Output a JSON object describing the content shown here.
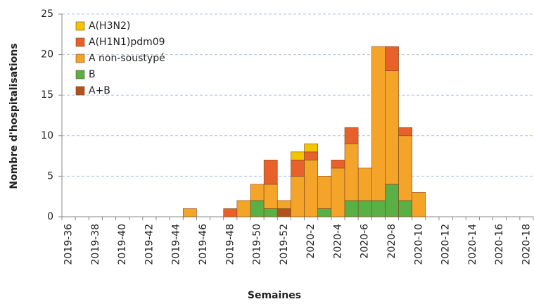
{
  "chart_data": {
    "type": "stacked_bar",
    "xlabel": "Semaines",
    "ylabel": "Nombre d'hospitalisations",
    "categories": [
      "2019-36",
      null,
      "2019-38",
      null,
      "2019-40",
      null,
      "2019-42",
      null,
      "2019-44",
      null,
      "2019-46",
      null,
      "2019-48",
      null,
      "2019-50",
      null,
      "2019-52",
      null,
      "2020-2",
      null,
      "2020-4",
      null,
      "2020-6",
      null,
      "2020-8",
      null,
      "2020-10",
      null,
      "2020-12",
      null,
      "2020-14",
      null,
      "2020-16",
      null,
      "2020-18"
    ],
    "series": [
      {
        "name": "A(H3N2)",
        "color": "#f2c500",
        "values": [
          0,
          0,
          0,
          0,
          0,
          0,
          0,
          0,
          0,
          0,
          0,
          0,
          0,
          0,
          0,
          0,
          0,
          1,
          1,
          0,
          0,
          0,
          0,
          0,
          0,
          0,
          0,
          0,
          0,
          0,
          0,
          0,
          0,
          0,
          0
        ]
      },
      {
        "name": "A(H1N1)pdm09",
        "color": "#e8602a",
        "values": [
          0,
          0,
          0,
          0,
          0,
          0,
          0,
          0,
          0,
          0,
          0,
          0,
          1,
          0,
          0,
          3,
          0,
          2,
          1,
          0,
          1,
          2,
          0,
          0,
          3,
          1,
          0,
          0,
          0,
          0,
          0,
          0,
          0,
          0,
          0
        ]
      },
      {
        "name": "A non-soustypé",
        "color": "#f5a42a",
        "values": [
          0,
          0,
          0,
          0,
          0,
          0,
          0,
          0,
          0,
          1,
          0,
          0,
          0,
          2,
          2,
          3,
          1,
          5,
          7,
          4,
          6,
          7,
          4,
          19,
          14,
          8,
          3,
          0,
          0,
          0,
          0,
          0,
          0,
          0,
          0
        ]
      },
      {
        "name": "B",
        "color": "#5aaf45",
        "values": [
          0,
          0,
          0,
          0,
          0,
          0,
          0,
          0,
          0,
          0,
          0,
          0,
          0,
          0,
          2,
          1,
          0,
          0,
          0,
          1,
          0,
          2,
          2,
          2,
          4,
          2,
          0,
          0,
          0,
          0,
          0,
          0,
          0,
          0,
          0
        ]
      },
      {
        "name": "A+B",
        "color": "#b4521f",
        "values": [
          0,
          0,
          0,
          0,
          0,
          0,
          0,
          0,
          0,
          0,
          0,
          0,
          0,
          0,
          0,
          0,
          1,
          0,
          0,
          0,
          0,
          0,
          0,
          0,
          0,
          0,
          0,
          0,
          0,
          0,
          0,
          0,
          0,
          0,
          0
        ]
      }
    ],
    "ylim": [
      0,
      25
    ],
    "yticks": [
      0,
      5,
      10,
      15,
      20,
      25
    ],
    "grid": true,
    "legend": "upper left"
  }
}
